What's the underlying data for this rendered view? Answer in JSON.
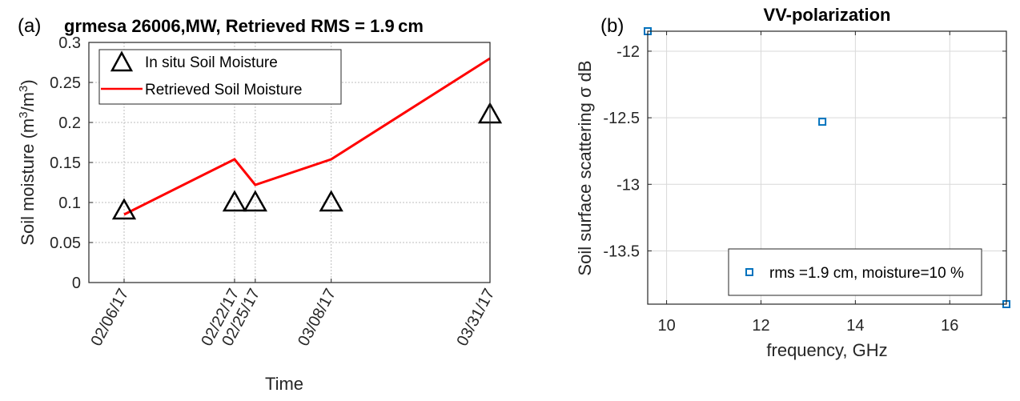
{
  "chart_data": [
    {
      "panel": "(a)",
      "type": "line",
      "title": "grmesa 26006,MW, Retrieved RMS = 1.9 cm",
      "xlabel": "Time",
      "ylabel": "Soil moisture (m",
      "ylabel_sup1": "3",
      "ylabel_mid": "/m",
      "ylabel_sup2": "3",
      "ylabel_end": ")",
      "ylim": [
        0,
        0.3
      ],
      "yticks": [
        0,
        0.05,
        0.1,
        0.15,
        0.2,
        0.25,
        0.3
      ],
      "ytick_labels": [
        "0",
        "0.05",
        "0.1",
        "0.15",
        "0.2",
        "0.25",
        "0.3"
      ],
      "x_dates": [
        "2017-02-06",
        "2017-02-22",
        "2017-02-25",
        "2017-03-08",
        "2017-03-31"
      ],
      "xtick_labels": [
        "02/06/17",
        "02/22/17",
        "02/25/17",
        "03/08/17",
        "03/31/17"
      ],
      "grid": true,
      "legend_position": "top-left",
      "series": [
        {
          "name": "In situ Soil Moisture",
          "marker": "triangle",
          "color": "#000000",
          "values": [
            0.09,
            0.1,
            0.1,
            0.1,
            0.21
          ]
        },
        {
          "name": "Retrieved Soil Moisture",
          "marker": "line",
          "color": "#ff0000",
          "values": [
            0.085,
            0.154,
            0.122,
            0.154,
            0.28
          ]
        }
      ]
    },
    {
      "panel": "(b)",
      "type": "scatter",
      "title": "VV-polarization",
      "xlabel": "frequency, GHz",
      "ylabel": "Soil surface scattering σ dB",
      "xlim": [
        9.6,
        17.2
      ],
      "ylim": [
        -13.9,
        -11.85
      ],
      "xticks": [
        10,
        12,
        14,
        16
      ],
      "yticks": [
        -13.5,
        -13,
        -12.5,
        -12
      ],
      "grid": true,
      "legend_position": "bottom-right",
      "series": [
        {
          "name": "rms =1.9 cm, moisture=10 %",
          "marker": "square",
          "color": "#0072bd",
          "x": [
            9.6,
            13.3,
            17.2
          ],
          "y": [
            -11.85,
            -12.53,
            -13.9
          ]
        }
      ]
    }
  ]
}
